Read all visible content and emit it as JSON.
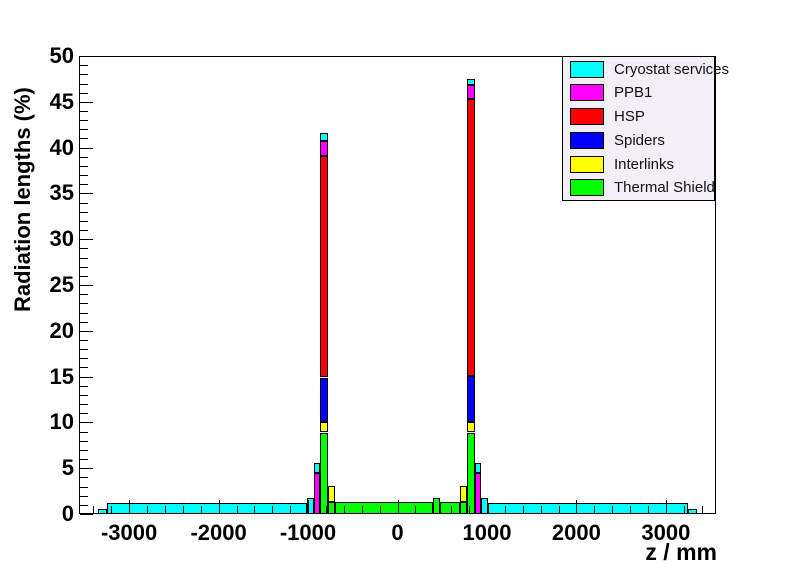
{
  "chart_data": {
    "type": "bar",
    "subtype": "stacked-histogram",
    "title": "",
    "xlabel": "z / mm",
    "ylabel": "Radiation lengths (%)",
    "xlim": [
      -3560,
      3560
    ],
    "ylim": [
      0,
      50
    ],
    "x_major_ticks": [
      -3000,
      -2000,
      -1000,
      0,
      1000,
      2000,
      3000
    ],
    "x_minor_step": 200,
    "y_major_ticks": [
      0,
      5,
      10,
      15,
      20,
      25,
      30,
      35,
      40,
      45,
      50
    ],
    "y_minor_step": 1,
    "grid": false,
    "legend_position": "top-right",
    "legend": [
      {
        "key": "cryostat_services",
        "label": "Cryostat services",
        "color": "#00ffff"
      },
      {
        "key": "ppb1",
        "label": "PPB1",
        "color": "#ff00ff"
      },
      {
        "key": "hsp",
        "label": "HSP",
        "color": "#ff0000"
      },
      {
        "key": "spiders",
        "label": "Spiders",
        "color": "#0000ff"
      },
      {
        "key": "interlinks",
        "label": "Interlinks",
        "color": "#ffff00"
      },
      {
        "key": "thermal_shield",
        "label": "Thermal Shield",
        "color": "#00ff00"
      }
    ],
    "stack_order_bottom_to_top": [
      "thermal_shield",
      "interlinks",
      "spiders",
      "hsp",
      "ppb1",
      "cryostat_services"
    ],
    "series_colors": {
      "cryostat_services": "#00ffff",
      "ppb1": "#ff00ff",
      "hsp": "#ff0000",
      "spiders": "#0000ff",
      "interlinks": "#ffff00",
      "thermal_shield": "#00ff00"
    },
    "bins": [
      {
        "z0": -3350,
        "z1": -3250,
        "stack": {
          "cryostat_services": 0.6
        }
      },
      {
        "z0": -3250,
        "z1": -1010,
        "stack": {
          "cryostat_services": 1.2
        }
      },
      {
        "z0": -1010,
        "z1": -935,
        "stack": {
          "cryostat_services": 1.7
        }
      },
      {
        "z0": -935,
        "z1": -865,
        "stack": {
          "ppb1": 4.5,
          "cryostat_services": 1.1
        }
      },
      {
        "z0": -865,
        "z1": -780,
        "stack": {
          "thermal_shield": 8.9,
          "interlinks": 1.1,
          "spiders": 4.9,
          "hsp": 24.2,
          "ppb1": 1.6,
          "cryostat_services": 0.9
        }
      },
      {
        "z0": -780,
        "z1": -700,
        "stack": {
          "thermal_shield": 1.35,
          "interlinks": 1.75
        }
      },
      {
        "z0": -700,
        "z1": 400,
        "stack": {
          "thermal_shield": 1.35
        }
      },
      {
        "z0": 400,
        "z1": 475,
        "stack": {
          "thermal_shield": 1.7
        }
      },
      {
        "z0": 475,
        "z1": 700,
        "stack": {
          "thermal_shield": 1.35
        }
      },
      {
        "z0": 700,
        "z1": 780,
        "stack": {
          "thermal_shield": 1.35,
          "interlinks": 1.75
        }
      },
      {
        "z0": 780,
        "z1": 865,
        "stack": {
          "thermal_shield": 8.9,
          "interlinks": 1.1,
          "spiders": 5.1,
          "hsp": 30.2,
          "ppb1": 1.5,
          "cryostat_services": 0.7
        }
      },
      {
        "z0": 865,
        "z1": 935,
        "stack": {
          "ppb1": 4.5,
          "cryostat_services": 1.1
        }
      },
      {
        "z0": 935,
        "z1": 1010,
        "stack": {
          "cryostat_services": 1.7
        }
      },
      {
        "z0": 1010,
        "z1": 3250,
        "stack": {
          "cryostat_services": 1.2
        }
      },
      {
        "z0": 3250,
        "z1": 3350,
        "stack": {
          "cryostat_services": 0.6
        }
      }
    ]
  },
  "colors": {
    "frame_border": "#000000",
    "background": "#ffffff",
    "legend_background": "#f2f0f6",
    "text": "#000000"
  }
}
